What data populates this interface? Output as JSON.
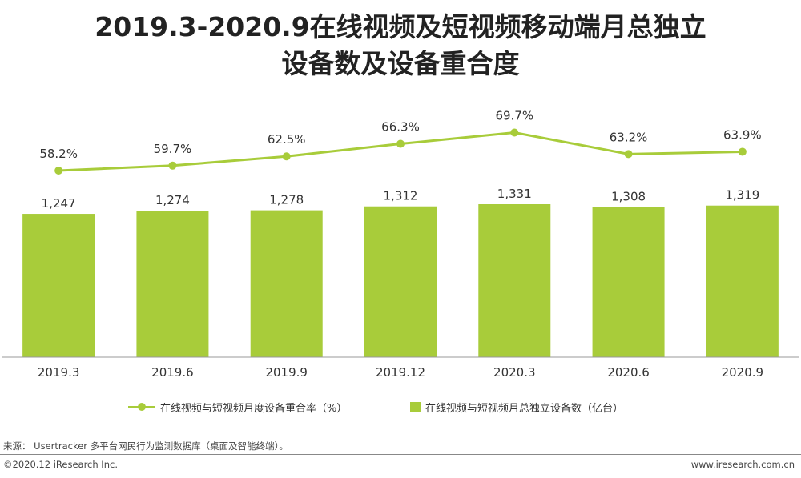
{
  "title_line1": "2019.3-2020.9在线视频及短视频移动端月总独立",
  "title_line2": "设备数及设备重合度",
  "chart_data": {
    "type": "bar",
    "title": "2019.3-2020.9在线视频及短视频移动端月总独立设备数及设备重合度",
    "categories": [
      "2019.3",
      "2019.6",
      "2019.9",
      "2019.12",
      "2020.3",
      "2020.6",
      "2020.9"
    ],
    "series": [
      {
        "name": "在线视频与短视频月总独立设备数（亿台）",
        "type": "bar",
        "values": [
          1247,
          1274,
          1278,
          1312,
          1331,
          1308,
          1319
        ],
        "labels": [
          "1,247",
          "1,274",
          "1,278",
          "1,312",
          "1,331",
          "1,308",
          "1,319"
        ],
        "color": "#a8cc3a"
      },
      {
        "name": "在线视频与短视频月度设备重合率（%）",
        "type": "line",
        "values": [
          58.2,
          59.7,
          62.5,
          66.3,
          69.7,
          63.2,
          63.9
        ],
        "labels": [
          "58.2%",
          "59.7%",
          "62.5%",
          "66.3%",
          "69.7%",
          "63.2%",
          "63.9%"
        ],
        "color": "#a8cc3a"
      }
    ],
    "legend_position": "bottom",
    "grid": false
  },
  "legend": {
    "line_label": "在线视频与短视频月度设备重合率（%）",
    "bar_label": "在线视频与短视频月总独立设备数（亿台）"
  },
  "source": "来源： Usertracker 多平台网民行为监测数据库（桌面及智能终端）。",
  "footer_left": "©2020.12 iResearch Inc.",
  "footer_right": "www.iresearch.com.cn"
}
